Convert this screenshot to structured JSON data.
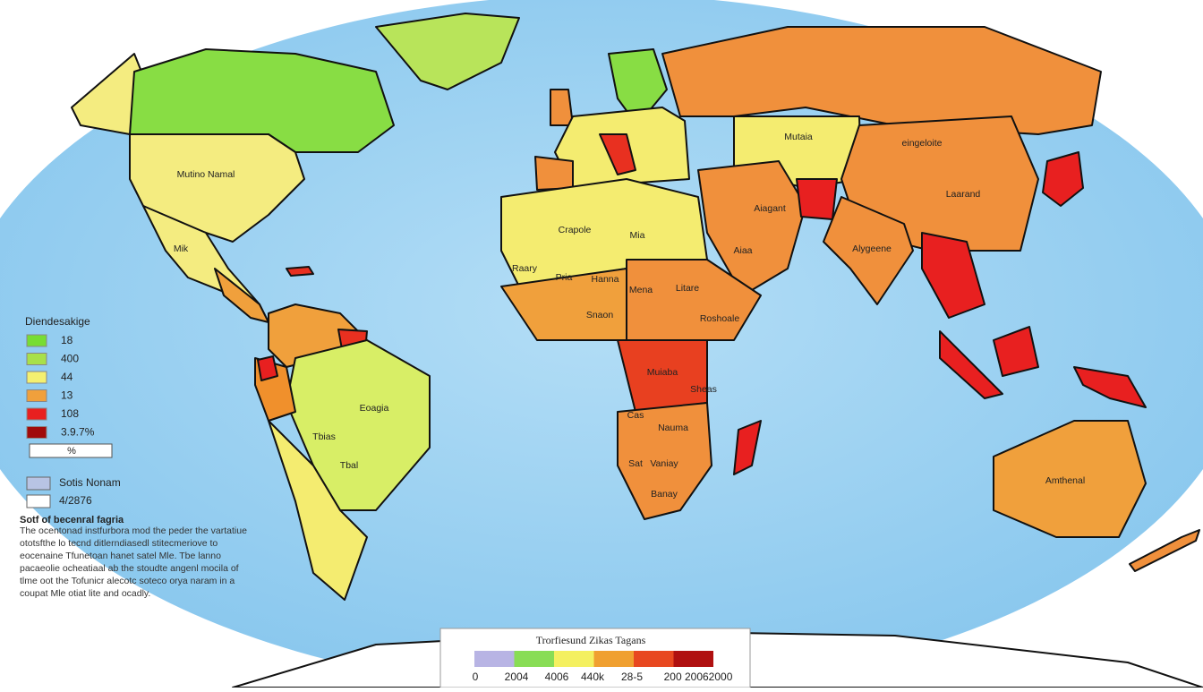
{
  "map": {
    "labels": [
      "Mutino Namal",
      "Mik",
      "Eoagia",
      "Tbias",
      "Tbal",
      "Crapole",
      "Mia",
      "Raary",
      "Pria",
      "Hanna",
      "Mena",
      "Snaon",
      "Litare",
      "Roshoale",
      "Muiaba",
      "Sheas",
      "Cas",
      "Nauma",
      "Sat",
      "Vaniay",
      "Banay",
      "Mutaia",
      "eingeloite",
      "Laarand",
      "Alygeene",
      "Aiaa",
      "Aiagant",
      "Amthenal"
    ]
  },
  "legend": {
    "title": "Diendesakige",
    "items": [
      {
        "label": "18",
        "color": "#77dd33"
      },
      {
        "label": "400",
        "color": "#a8e04a"
      },
      {
        "label": "44",
        "color": "#f4f070"
      },
      {
        "label": "13",
        "color": "#f0a03c"
      },
      {
        "label": "108",
        "color": "#e82020"
      },
      {
        "label": "3.9.7%",
        "color": "#a00a0a"
      }
    ],
    "unit": "%"
  },
  "legend2": {
    "items": [
      {
        "label": "Sotis Nonam",
        "color": "#b8c4e4"
      },
      {
        "label": "4/2876",
        "color": "#ffffff"
      }
    ]
  },
  "note": {
    "title": "Sotf of becenral fagria",
    "lines": [
      "The ocentonad instfurbora mod the peder the vartatiue",
      "ototsfthe lo tecnd ditlerndiasedl stitecmeriove to",
      "eocenaine Tfunetoan hanet satel Mle. Tbe lanno",
      "pacaeolie ocheatiaal ab the stoudte angenl mocila of",
      "tlme oot the Tofunicr alecotc soteco orya naram in a",
      "coupat Mle otiat lite and ocadly."
    ]
  },
  "colorbar": {
    "title": "Trorfiesund Zikas Tagans",
    "labels": [
      "0",
      "2004",
      "4006",
      "440k",
      "28-5",
      "200 20062000"
    ],
    "colors": [
      "#b8b4e4",
      "#88dd55",
      "#f4f060",
      "#f0a030",
      "#e84820",
      "#b01010"
    ]
  }
}
